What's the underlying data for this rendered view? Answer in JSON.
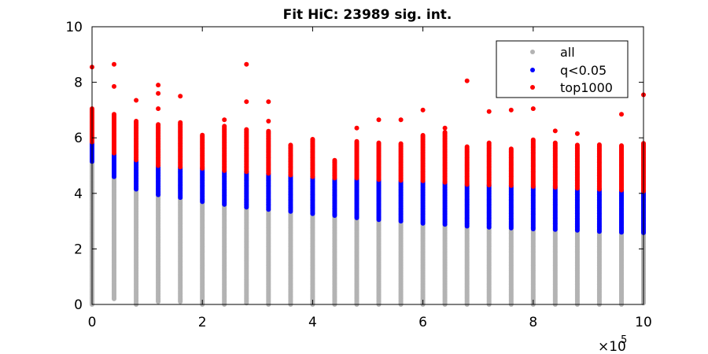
{
  "chart_data": {
    "type": "scatter",
    "title": "Fit HiC: 23989 sig. int.",
    "xlabel": "",
    "ylabel": "",
    "xlim": [
      0,
      10
    ],
    "ylim": [
      0,
      10
    ],
    "x_exponent_label": "×10",
    "x_exponent_power": "5",
    "xticks": [
      "0",
      "2",
      "4",
      "6",
      "8",
      "10"
    ],
    "yticks": [
      "0",
      "2",
      "4",
      "6",
      "8",
      "10"
    ],
    "grid": false,
    "legend_position": "top-right",
    "x_positions": [
      0,
      0.4,
      0.8,
      1.2,
      1.6,
      2.0,
      2.4,
      2.8,
      3.2,
      3.6,
      4.0,
      4.4,
      4.8,
      5.2,
      5.6,
      6.0,
      6.4,
      6.8,
      7.2,
      7.6,
      8.0,
      8.4,
      8.8,
      9.2,
      9.6,
      10.0
    ],
    "series": [
      {
        "name": "all",
        "color": "#b3b3b3",
        "column_min": [
          0,
          0.2,
          0,
          0.1,
          0.1,
          0,
          0,
          0.05,
          0,
          0,
          0,
          0,
          0,
          0,
          0,
          0,
          0,
          0,
          0,
          0,
          0,
          0,
          0,
          0,
          0,
          0.05
        ],
        "column_max": [
          5.15,
          4.6,
          4.15,
          3.95,
          3.85,
          3.7,
          3.6,
          3.5,
          3.42,
          3.35,
          3.27,
          3.2,
          3.12,
          3.05,
          3.0,
          2.92,
          2.88,
          2.82,
          2.78,
          2.75,
          2.72,
          2.7,
          2.67,
          2.63,
          2.6,
          2.58
        ]
      },
      {
        "name": "q<0.05",
        "color": "#0000ff",
        "column_min": [
          5.15,
          4.6,
          4.15,
          3.95,
          3.85,
          3.7,
          3.6,
          3.5,
          3.42,
          3.35,
          3.27,
          3.2,
          3.12,
          3.05,
          3.0,
          2.92,
          2.88,
          2.82,
          2.78,
          2.75,
          2.72,
          2.7,
          2.67,
          2.63,
          2.6,
          2.58
        ],
        "column_max": [
          5.85,
          5.45,
          5.2,
          5.0,
          4.95,
          4.9,
          4.82,
          4.78,
          4.72,
          4.66,
          4.6,
          4.55,
          4.55,
          4.5,
          4.47,
          4.45,
          4.4,
          4.32,
          4.3,
          4.28,
          4.25,
          4.22,
          4.18,
          4.15,
          4.12,
          4.08
        ]
      },
      {
        "name": "top1000",
        "color": "#ff0000",
        "column_min": [
          5.85,
          5.45,
          5.2,
          5.0,
          4.95,
          4.9,
          4.82,
          4.78,
          4.72,
          4.66,
          4.6,
          4.55,
          4.55,
          4.5,
          4.47,
          4.45,
          4.4,
          4.32,
          4.3,
          4.28,
          4.25,
          4.22,
          4.18,
          4.15,
          4.12,
          4.08
        ],
        "column_max": [
          7.05,
          6.85,
          6.6,
          6.5,
          6.55,
          6.1,
          6.45,
          6.3,
          6.25,
          5.75,
          5.95,
          5.2,
          5.9,
          5.85,
          5.8,
          6.1,
          6.2,
          5.7,
          5.85,
          5.6,
          5.95,
          5.85,
          5.75,
          5.75,
          5.75,
          5.8
        ],
        "outliers": [
          [
            0,
            8.55
          ],
          [
            0.4,
            8.65
          ],
          [
            0.4,
            7.85
          ],
          [
            0.8,
            7.35
          ],
          [
            1.2,
            7.9
          ],
          [
            1.2,
            7.6
          ],
          [
            1.2,
            7.05
          ],
          [
            1.6,
            7.5
          ],
          [
            2.4,
            6.65
          ],
          [
            2.8,
            8.65
          ],
          [
            2.8,
            7.3
          ],
          [
            3.2,
            7.3
          ],
          [
            3.2,
            6.6
          ],
          [
            4.0,
            5.95
          ],
          [
            4.8,
            6.35
          ],
          [
            5.2,
            6.65
          ],
          [
            5.6,
            6.65
          ],
          [
            6.0,
            7.0
          ],
          [
            6.4,
            6.35
          ],
          [
            6.8,
            8.05
          ],
          [
            7.2,
            6.95
          ],
          [
            7.6,
            7.0
          ],
          [
            8.0,
            7.05
          ],
          [
            8.4,
            6.25
          ],
          [
            8.8,
            6.15
          ],
          [
            9.6,
            6.85
          ],
          [
            10.0,
            7.55
          ]
        ]
      }
    ]
  }
}
